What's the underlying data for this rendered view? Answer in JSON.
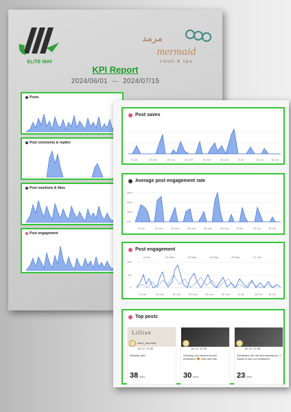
{
  "report": {
    "title": "KPI Report",
    "date_from": "2024/06/01",
    "date_sep": "—",
    "date_to": "2024/07/15"
  },
  "logos": {
    "left_text": "ELITE WAY",
    "right_text": "mermaid",
    "right_sub": "salon & spa"
  },
  "colors": {
    "accent_green": "#34c634",
    "area_fill": "#8fb0ec",
    "area_stroke": "#3b6fd8"
  },
  "back_cards": [
    {
      "label": "Posts",
      "icon": "insight-icon"
    },
    {
      "label": "Post comments & replies",
      "icon": "insight-icon"
    },
    {
      "label": "Post reactions & likes",
      "icon": "insight-icon"
    },
    {
      "label": "Post engagement",
      "icon": "insight-icon"
    }
  ],
  "front_cards": {
    "saves": {
      "label": "Post saves",
      "x_ticks": [
        "5 Jun",
        "10 Jun",
        "15 Jun",
        "20 Jun",
        "25 Jun",
        "30 Jun",
        "5 Jul",
        "10 Jul",
        "15 Jul"
      ]
    },
    "rate": {
      "label": "Average post engagement rate",
      "y_ticks": [
        "30%",
        "20%",
        "10%",
        "0%"
      ],
      "x_ticks": [
        "5 Jun",
        "10 Jun",
        "15 Jun",
        "20 Jun",
        "25 Jun",
        "30 Jun",
        "5 Jul",
        "10 Jul",
        "15 Jul"
      ]
    },
    "engagement": {
      "label": "Post engagement",
      "y_ticks": [
        "100",
        "50",
        "0"
      ],
      "top_ticks": [
        "6 Jan",
        "26 May",
        "25 May",
        "15 May",
        "25 Mar",
        "21 Jan",
        "25 Jan"
      ],
      "x_ticks": [
        "5 Jun",
        "10 Jun",
        "15 Jun",
        "20 Jun",
        "25 Jun",
        "30 Jun",
        "5 Jul",
        "10 Jul",
        "15 Jul"
      ]
    },
    "top_posts": {
      "label": "Top posts",
      "posts": [
        {
          "user": "salon_mermaid",
          "date": "Jul 10, 12:36",
          "img_text": "Lillian",
          "likes": "38",
          "likes_label": "likes",
          "caption": "Glowing skin"
        },
        {
          "user": "salon_mermaid",
          "date": "Jul 10, 12:36",
          "img_text": "",
          "likes": "30",
          "likes_label": "likes",
          "caption": "Glowing, sun-kissed bronze perfection! 😍 Dive into this"
        },
        {
          "user": "salon_mermaid",
          "date": "Jul 10, 12:36",
          "img_text": "",
          "likes": "23",
          "likes_label": "likes",
          "caption": "Eyelashes are the best accessory 🤍 Swipe to see our treatment"
        }
      ]
    }
  }
}
